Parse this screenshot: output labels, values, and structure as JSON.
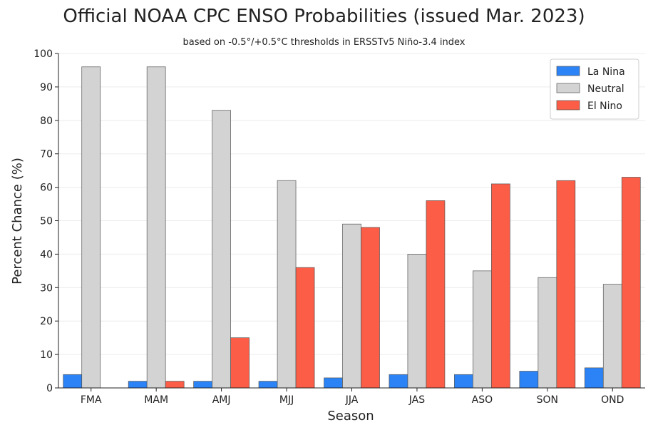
{
  "chart_data": {
    "type": "bar",
    "title": "Official NOAA CPC ENSO Probabilities (issued Mar. 2023)",
    "subtitle": "based on -0.5°/+0.5°C thresholds in ERSSTv5 Niño-3.4 index",
    "xlabel": "Season",
    "ylabel": "Percent Chance (%)",
    "ylim": [
      0,
      100
    ],
    "yticks": [
      0,
      10,
      20,
      30,
      40,
      50,
      60,
      70,
      80,
      90,
      100
    ],
    "grid": "horizontal",
    "legend_position": "top-right",
    "categories": [
      "FMA",
      "MAM",
      "AMJ",
      "MJJ",
      "JJA",
      "JAS",
      "ASO",
      "SON",
      "OND"
    ],
    "series": [
      {
        "name": "La Nina",
        "color": "#2b83f6",
        "values": [
          4,
          2,
          2,
          2,
          3,
          4,
          4,
          5,
          6
        ]
      },
      {
        "name": "Neutral",
        "color": "#d3d3d3",
        "values": [
          96,
          96,
          83,
          62,
          49,
          40,
          35,
          33,
          31
        ]
      },
      {
        "name": "El Nino",
        "color": "#fb5d47",
        "values": [
          0,
          2,
          15,
          36,
          48,
          56,
          61,
          62,
          63
        ]
      }
    ]
  }
}
